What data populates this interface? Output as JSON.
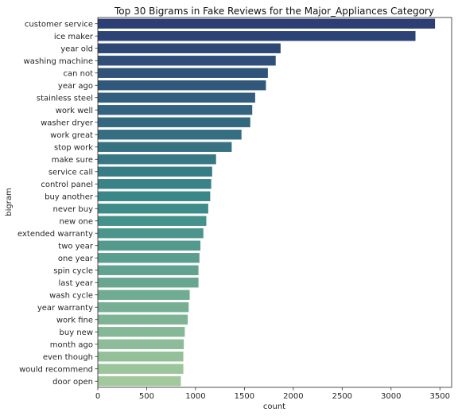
{
  "chart_data": {
    "type": "bar",
    "orientation": "horizontal",
    "title": "Top 30 Bigrams in Fake Reviews for the Major_Appliances Category",
    "xlabel": "count",
    "ylabel": "bigram",
    "xlim": [
      0,
      3620
    ],
    "xticks": [
      0,
      500,
      1000,
      1500,
      2000,
      2500,
      3000,
      3500
    ],
    "grid": false,
    "legend": "none",
    "palette": "crest (dark blue to light green)",
    "colors": {
      "start": "#2c3e73",
      "mid": "#3a8a89",
      "end": "#a2c99c"
    },
    "categories": [
      "customer service",
      "ice maker",
      "year old",
      "washing machine",
      "can not",
      "year ago",
      "stainless steel",
      "work well",
      "washer dryer",
      "work great",
      "stop work",
      "make sure",
      "service call",
      "control panel",
      "buy another",
      "never buy",
      "new one",
      "extended warranty",
      "two year",
      "one year",
      "spin cycle",
      "last year",
      "wash cycle",
      "year warranty",
      "work fine",
      "buy new",
      "month ago",
      "even though",
      "would recommend",
      "door open"
    ],
    "values": [
      3450,
      3250,
      1870,
      1820,
      1740,
      1720,
      1610,
      1580,
      1560,
      1470,
      1370,
      1210,
      1170,
      1160,
      1150,
      1130,
      1110,
      1080,
      1050,
      1040,
      1030,
      1030,
      940,
      930,
      920,
      890,
      880,
      875,
      875,
      850
    ]
  }
}
